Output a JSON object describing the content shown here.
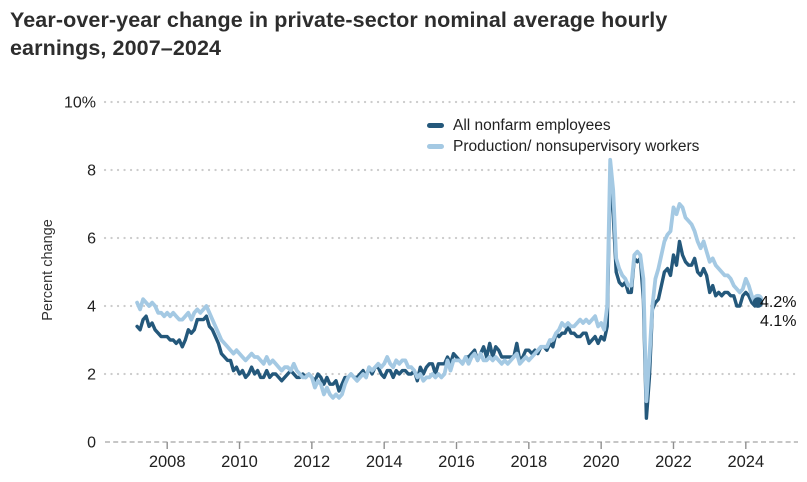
{
  "header": {
    "title_lines": [
      "Year-over-year change in private-sector nominal average hourly",
      "earnings, 2007–2024"
    ]
  },
  "chart_data": {
    "type": "line",
    "title": "Year-over-year change in private-sector nominal average hourly earnings, 2007–2024",
    "xlabel": "",
    "ylabel": "Percent change",
    "frequency": "monthly",
    "start": {
      "year": 2007,
      "month": 3
    },
    "end": {
      "year": 2024,
      "month": 5
    },
    "xlim": [
      2006.28,
      2025.36
    ],
    "ylim": [
      0,
      10
    ],
    "x_ticks": [
      2008,
      2010,
      2012,
      2014,
      2016,
      2018,
      2020,
      2022,
      2024
    ],
    "y_ticks": [
      0,
      2,
      4,
      6,
      8,
      10
    ],
    "y_tick_labels": [
      "0",
      "2",
      "4",
      "6",
      "8",
      "10%"
    ],
    "grid": "dotted-horizontal",
    "baseline": "dashed",
    "legend_position": "top-right-inside",
    "colors": {
      "all_nonfarm": "#24587B",
      "production": "#A4C9E3",
      "gridline": "#cccccc",
      "baseline": "#b4b4b4",
      "tick": "#8f8f8f",
      "axis_text": "#212121"
    },
    "series": [
      {
        "name": "All nonfarm employees",
        "color": "#24587B",
        "end_label": "4.1%",
        "end_value": 4.1,
        "values": [
          3.4,
          3.3,
          3.6,
          3.7,
          3.4,
          3.5,
          3.3,
          3.2,
          3.1,
          3.1,
          3.1,
          3.0,
          3.0,
          2.9,
          3.0,
          2.8,
          3.0,
          3.3,
          3.2,
          3.3,
          3.6,
          3.6,
          3.6,
          3.7,
          3.4,
          3.3,
          3.1,
          2.9,
          2.6,
          2.5,
          2.4,
          2.4,
          2.1,
          2.2,
          2.0,
          2.1,
          1.9,
          2.0,
          2.2,
          2.0,
          2.1,
          1.9,
          1.9,
          2.1,
          1.9,
          2.0,
          2.0,
          1.9,
          1.8,
          1.9,
          2.0,
          2.1,
          2.0,
          1.9,
          1.9,
          2.0,
          1.9,
          2.0,
          1.9,
          1.8,
          2.0,
          1.9,
          1.7,
          1.9,
          1.7,
          1.7,
          1.8,
          1.5,
          1.7,
          1.9,
          1.9,
          2.0,
          1.9,
          1.9,
          2.0,
          2.1,
          1.9,
          2.2,
          2.0,
          2.2,
          2.2,
          2.0,
          1.9,
          2.1,
          2.1,
          1.9,
          2.1,
          2.0,
          2.1,
          2.1,
          2.0,
          2.0,
          2.1,
          1.8,
          2.2,
          2.0,
          2.2,
          2.3,
          2.3,
          2.0,
          2.3,
          2.3,
          2.3,
          2.5,
          2.3,
          2.6,
          2.5,
          2.4,
          2.3,
          2.5,
          2.5,
          2.6,
          2.7,
          2.4,
          2.6,
          2.8,
          2.5,
          2.9,
          2.5,
          2.8,
          2.7,
          2.5,
          2.5,
          2.5,
          2.5,
          2.5,
          2.9,
          2.4,
          2.5,
          2.7,
          2.7,
          2.6,
          2.7,
          2.6,
          2.8,
          2.8,
          2.7,
          2.9,
          2.8,
          3.2,
          3.1,
          3.2,
          3.2,
          3.4,
          3.2,
          3.2,
          3.1,
          3.1,
          3.2,
          3.2,
          2.9,
          3.0,
          3.1,
          2.9,
          3.1,
          3.0,
          3.4,
          8.0,
          6.7,
          5.0,
          4.7,
          4.6,
          4.7,
          4.4,
          4.4,
          5.4,
          5.3,
          5.4,
          4.2,
          0.7,
          1.9,
          3.9,
          4.1,
          4.2,
          4.6,
          5.0,
          5.1,
          4.9,
          5.5,
          5.2,
          5.9,
          5.5,
          5.3,
          5.2,
          5.2,
          5.4,
          5.0,
          4.9,
          5.1,
          4.9,
          4.4,
          4.6,
          4.3,
          4.4,
          4.3,
          4.4,
          4.4,
          4.3,
          4.3,
          4.0,
          4.0,
          4.3,
          4.4,
          4.3,
          4.1,
          4.0,
          4.1
        ]
      },
      {
        "name": "Production/ nonsupervisory workers",
        "color": "#A4C9E3",
        "end_label": "4.2%",
        "end_value": 4.2,
        "values": [
          4.1,
          3.9,
          4.2,
          4.1,
          4.0,
          4.1,
          4.0,
          3.8,
          3.8,
          3.7,
          3.8,
          3.7,
          3.8,
          3.7,
          3.6,
          3.6,
          3.7,
          3.8,
          3.6,
          3.8,
          3.9,
          3.8,
          3.9,
          4.0,
          3.8,
          3.6,
          3.4,
          3.2,
          3.0,
          2.9,
          2.8,
          2.7,
          2.6,
          2.7,
          2.6,
          2.5,
          2.4,
          2.5,
          2.6,
          2.5,
          2.5,
          2.4,
          2.3,
          2.5,
          2.3,
          2.4,
          2.3,
          2.2,
          2.1,
          2.2,
          2.2,
          2.1,
          2.3,
          2.1,
          2.0,
          1.9,
          1.9,
          2.0,
          1.9,
          1.6,
          1.8,
          1.7,
          1.4,
          1.6,
          1.4,
          1.3,
          1.4,
          1.3,
          1.4,
          1.7,
          1.9,
          2.0,
          1.9,
          1.8,
          1.9,
          2.0,
          1.9,
          2.2,
          2.1,
          2.2,
          2.3,
          2.2,
          2.3,
          2.5,
          2.3,
          2.2,
          2.4,
          2.3,
          2.4,
          2.4,
          2.2,
          2.2,
          2.1,
          1.9,
          2.0,
          1.8,
          1.9,
          1.9,
          2.0,
          1.9,
          2.0,
          1.9,
          2.0,
          2.4,
          2.1,
          2.4,
          2.4,
          2.4,
          2.3,
          2.5,
          2.3,
          2.5,
          2.6,
          2.4,
          2.6,
          2.4,
          2.4,
          2.5,
          2.4,
          2.5,
          2.4,
          2.3,
          2.4,
          2.3,
          2.4,
          2.5,
          2.6,
          2.3,
          2.4,
          2.5,
          2.4,
          2.5,
          2.6,
          2.7,
          2.8,
          2.8,
          2.8,
          3.0,
          3.0,
          3.2,
          3.3,
          3.5,
          3.4,
          3.5,
          3.4,
          3.4,
          3.5,
          3.6,
          3.5,
          3.6,
          3.5,
          3.6,
          3.7,
          3.4,
          3.5,
          3.3,
          4.0,
          8.3,
          7.4,
          5.4,
          5.1,
          4.9,
          4.8,
          4.6,
          4.6,
          5.5,
          5.6,
          5.5,
          4.8,
          1.2,
          2.5,
          4.0,
          4.8,
          5.1,
          5.5,
          5.9,
          6.1,
          6.2,
          6.9,
          6.7,
          7.0,
          6.9,
          6.6,
          6.5,
          6.4,
          6.2,
          5.9,
          5.7,
          5.9,
          5.6,
          5.3,
          5.4,
          5.2,
          5.1,
          5.0,
          4.9,
          4.9,
          4.8,
          4.6,
          4.5,
          4.4,
          4.5,
          4.8,
          4.6,
          4.3,
          4.1,
          4.2
        ]
      }
    ]
  }
}
